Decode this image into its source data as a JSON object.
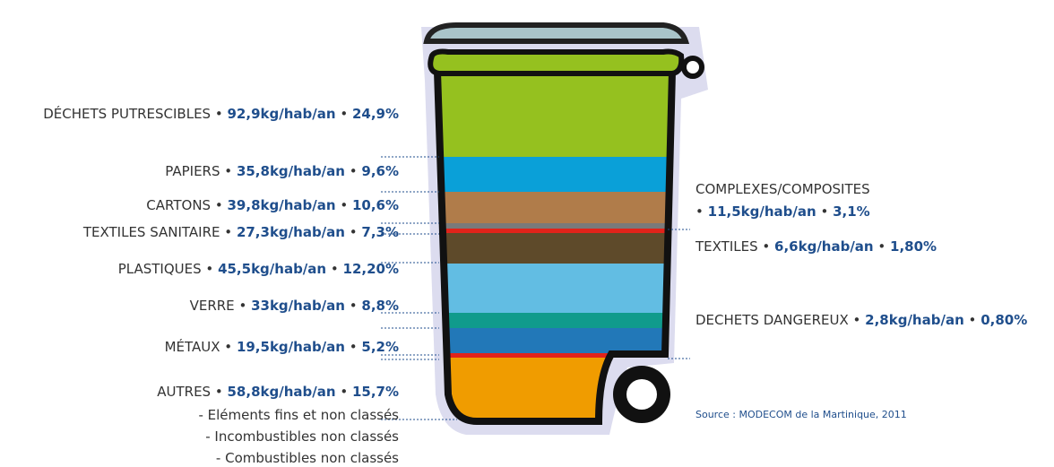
{
  "separator": "•",
  "left_items": [
    {
      "name": "DÉCHETS PUTRESCIBLES",
      "amount": "92,9kg/hab/an",
      "share": "24,9%"
    },
    {
      "name": "PAPIERS",
      "amount": "35,8kg/hab/an",
      "share": "9,6%"
    },
    {
      "name": "CARTONS",
      "amount": "39,8kg/hab/an",
      "share": "10,6%"
    },
    {
      "name": "TEXTILES SANITAIRE",
      "amount": "27,3kg/hab/an",
      "share": "7,3%"
    },
    {
      "name": "PLASTIQUES",
      "amount": "45,5kg/hab/an",
      "share": "12,20%"
    },
    {
      "name": "VERRE",
      "amount": "33kg/hab/an",
      "share": "8,8%"
    },
    {
      "name": "MÉTAUX",
      "amount": "19,5kg/hab/an",
      "share": "5,2%"
    },
    {
      "name": "AUTRES",
      "amount": "58,8kg/hab/an",
      "share": "15,7%"
    }
  ],
  "autres_details": [
    "- Eléments fins et non classés",
    "- Incombustibles non classés",
    "- Combustibles non classés"
  ],
  "right_items": [
    {
      "name": "COMPLEXES/COMPOSITES",
      "amount": "11,5kg/hab/an",
      "share": "3,1%"
    },
    {
      "name": "TEXTILES",
      "amount": "6,6kg/hab/an",
      "share": "1,80%"
    },
    {
      "name": "DECHETS DANGEREUX",
      "amount": "2,8kg/hab/an",
      "share": "0,80%"
    }
  ],
  "source": "Source : MODECOM de la Martinique, 2011"
}
